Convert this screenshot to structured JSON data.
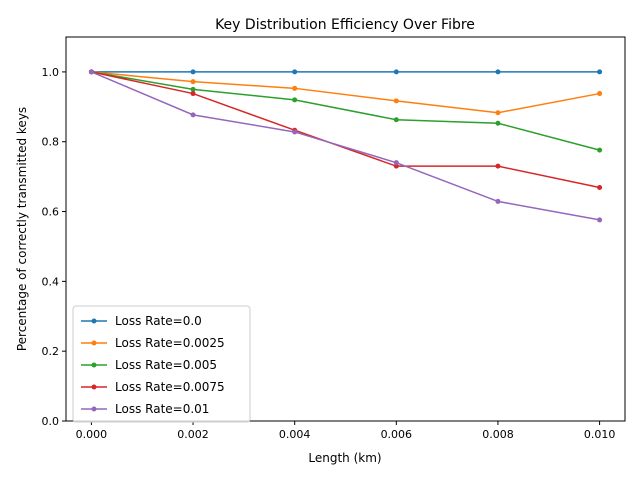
{
  "chart_data": {
    "type": "line",
    "title": "Key Distribution Efficiency Over Fibre",
    "xlabel": "Length (km)",
    "ylabel": "Percentage of correctly transmitted keys",
    "x": [
      0.0,
      0.002,
      0.004,
      0.006,
      0.008,
      0.01
    ],
    "xlim": [
      -0.0005,
      0.0105
    ],
    "ylim": [
      0.0,
      1.1
    ],
    "xticks": [
      "0.000",
      "0.002",
      "0.004",
      "0.006",
      "0.008",
      "0.010"
    ],
    "yticks": [
      "0.0",
      "0.2",
      "0.4",
      "0.6",
      "0.8",
      "1.0"
    ],
    "grid": false,
    "legend_position": "lower-left",
    "series": [
      {
        "name": "Loss Rate=0.0",
        "color": "#1f77b4",
        "values": [
          1.0,
          1.0,
          1.0,
          1.0,
          1.0,
          1.0
        ]
      },
      {
        "name": "Loss Rate=0.0025",
        "color": "#ff7f0e",
        "values": [
          1.0,
          0.972,
          0.953,
          0.917,
          0.883,
          0.938
        ]
      },
      {
        "name": "Loss Rate=0.005",
        "color": "#2ca02c",
        "values": [
          1.0,
          0.95,
          0.92,
          0.863,
          0.853,
          0.776
        ]
      },
      {
        "name": "Loss Rate=0.0075",
        "color": "#d62728",
        "values": [
          1.0,
          0.938,
          0.833,
          0.73,
          0.73,
          0.669
        ]
      },
      {
        "name": "Loss Rate=0.01",
        "color": "#9467bd",
        "values": [
          1.0,
          0.877,
          0.828,
          0.74,
          0.629,
          0.576
        ]
      }
    ]
  }
}
